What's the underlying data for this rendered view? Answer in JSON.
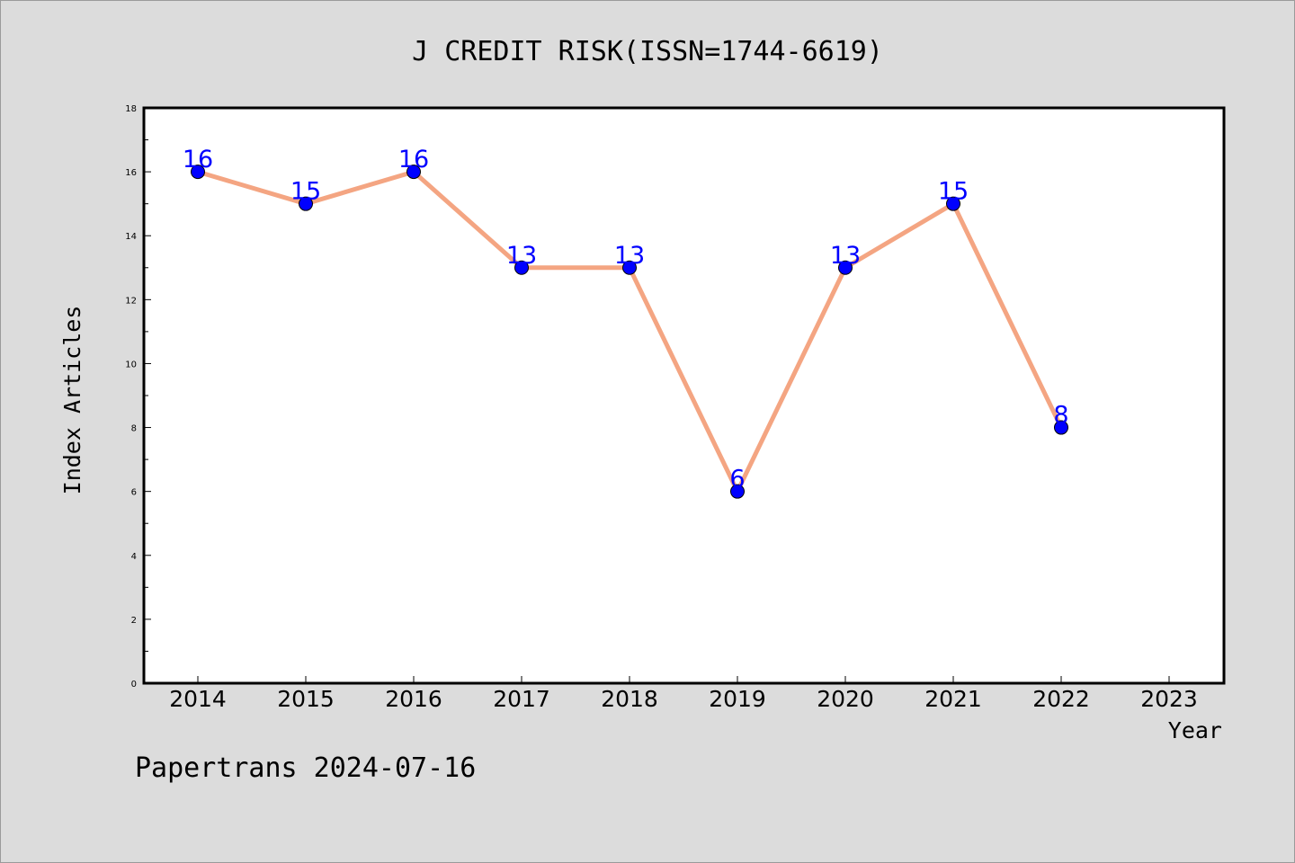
{
  "chart_data": {
    "type": "line",
    "title": "J CREDIT RISK(ISSN=1744-6619)",
    "xlabel": "Year",
    "ylabel": "Index Articles",
    "footer": "Papertrans 2024-07-16",
    "x_ticks": [
      "2014",
      "2015",
      "2016",
      "2017",
      "2018",
      "2019",
      "2020",
      "2021",
      "2022",
      "2023"
    ],
    "y_ticks": [
      "0",
      "2",
      "4",
      "6",
      "8",
      "10",
      "12",
      "14",
      "16",
      "18"
    ],
    "ylim": [
      0,
      18
    ],
    "grid": false,
    "series": [
      {
        "x": [
          "2014",
          "2015",
          "2016",
          "2017",
          "2018",
          "2019",
          "2020",
          "2021",
          "2022"
        ],
        "values": [
          16,
          15,
          16,
          13,
          13,
          6,
          13,
          15,
          8
        ],
        "data_labels": [
          "16",
          "15",
          "16",
          "13",
          "13",
          "6",
          "13",
          "15",
          "8"
        ],
        "line_color": "#f4a582",
        "marker_color": "#0000ff",
        "label_color": "#0000ff"
      }
    ]
  }
}
